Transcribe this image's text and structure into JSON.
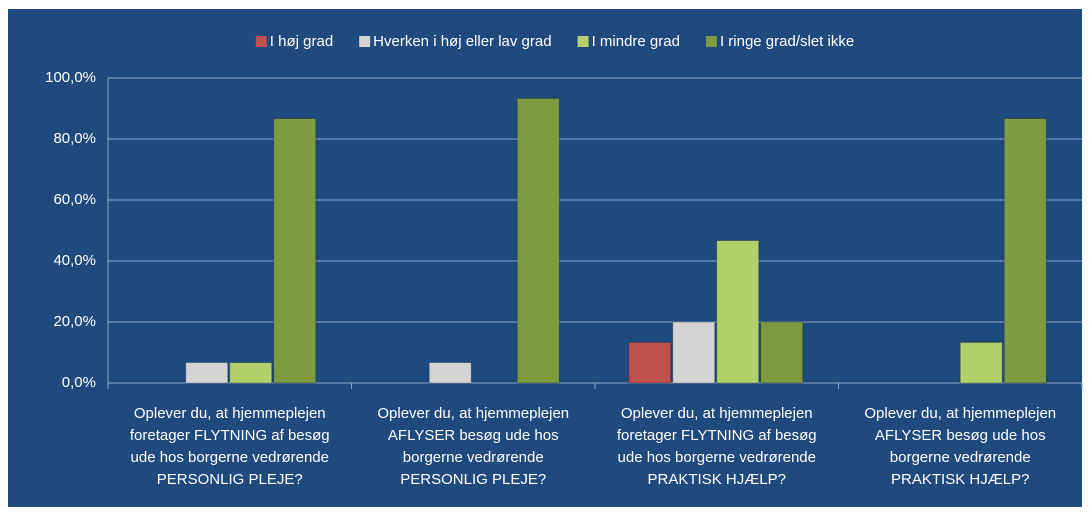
{
  "chart_data": {
    "type": "bar",
    "categories": [
      [
        "Oplever du, at hjemmeplejen",
        "foretager FLYTNING  af besøg",
        "ude hos borgerne vedrørende",
        "PERSONLIG PLEJE?"
      ],
      [
        "Oplever du, at hjemmeplejen",
        "AFLYSER besøg ude hos",
        "borgerne vedrørende",
        "PERSONLIG PLEJE?"
      ],
      [
        "Oplever du, at hjemmeplejen",
        "foretager FLYTNING  af besøg",
        "ude hos borgerne vedrørende",
        "PRAKTISK HJÆLP?"
      ],
      [
        "Oplever du, at hjemmeplejen",
        "AFLYSER besøg ude hos",
        "borgerne vedrørende",
        "PRAKTISK HJÆLP?"
      ]
    ],
    "series": [
      {
        "name": "I høj grad",
        "color": "#c0504d",
        "values": [
          0,
          0,
          13.3,
          0
        ]
      },
      {
        "name": "Hverken i høj eller lav grad",
        "color": "#d4d4d4",
        "values": [
          6.7,
          6.7,
          20,
          0
        ]
      },
      {
        "name": "I mindre grad",
        "color": "#b2d16a",
        "values": [
          6.7,
          0,
          46.7,
          13.3
        ]
      },
      {
        "name": "I ringe grad/slet ikke",
        "color": "#7e9c3f",
        "values": [
          86.7,
          93.3,
          20,
          86.7
        ]
      }
    ],
    "ylim": [
      0,
      100
    ],
    "yticks": [
      {
        "value": 0,
        "label": "0,0%"
      },
      {
        "value": 20,
        "label": "20,0%"
      },
      {
        "value": 40,
        "label": "40,0%"
      },
      {
        "value": 60,
        "label": "60,0%"
      },
      {
        "value": 80,
        "label": "80,0%"
      },
      {
        "value": 100,
        "label": "100,0%"
      }
    ],
    "grid": true,
    "legend": "top"
  }
}
